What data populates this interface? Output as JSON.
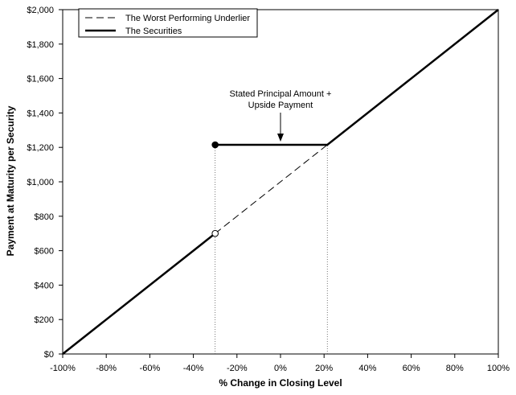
{
  "chart_data": {
    "type": "line",
    "xlabel": "% Change in Closing Level",
    "ylabel": "Payment at Maturity per Security",
    "xlim": [
      -100,
      100
    ],
    "ylim": [
      0,
      2000
    ],
    "x_ticks": [
      -100,
      -80,
      -60,
      -40,
      -20,
      0,
      20,
      40,
      60,
      80,
      100
    ],
    "x_tick_labels": [
      "-100%",
      "-80%",
      "-60%",
      "-40%",
      "-20%",
      "0%",
      "20%",
      "40%",
      "60%",
      "80%",
      "100%"
    ],
    "y_ticks": [
      0,
      200,
      400,
      600,
      800,
      1000,
      1200,
      1400,
      1600,
      1800,
      2000
    ],
    "y_tick_labels": [
      "$0",
      "$200",
      "$400",
      "$600",
      "$800",
      "$1,000",
      "$1,200",
      "$1,400",
      "$1,600",
      "$1,800",
      "$2,000"
    ],
    "legend": {
      "position": "top-left",
      "entries": [
        "The Worst Performing Underlier",
        "The Securities"
      ]
    },
    "series": [
      {
        "name": "The Worst Performing Underlier",
        "style": "dashed",
        "points": [
          [
            -30,
            700
          ],
          [
            21.5,
            1215
          ]
        ]
      },
      {
        "name": "The Securities",
        "style": "solid",
        "segments": [
          [
            [
              -100,
              0
            ],
            [
              -30,
              700
            ]
          ],
          [
            [
              -30,
              1215
            ],
            [
              21.5,
              1215
            ],
            [
              100,
              2000
            ]
          ]
        ]
      }
    ],
    "markers": [
      {
        "x": -30,
        "y": 1215,
        "fill": "filled"
      },
      {
        "x": -30,
        "y": 700,
        "fill": "open"
      }
    ],
    "reference_lines": [
      {
        "x": -30,
        "y_from": 0,
        "y_to": 1215,
        "style": "dotted"
      },
      {
        "x": 21.5,
        "y_from": 0,
        "y_to": 1215,
        "style": "dotted"
      }
    ],
    "annotation": {
      "lines": [
        "Stated Principal Amount +",
        "Upside Payment"
      ],
      "arrow_to": {
        "x": 0,
        "y": 1215
      }
    }
  }
}
